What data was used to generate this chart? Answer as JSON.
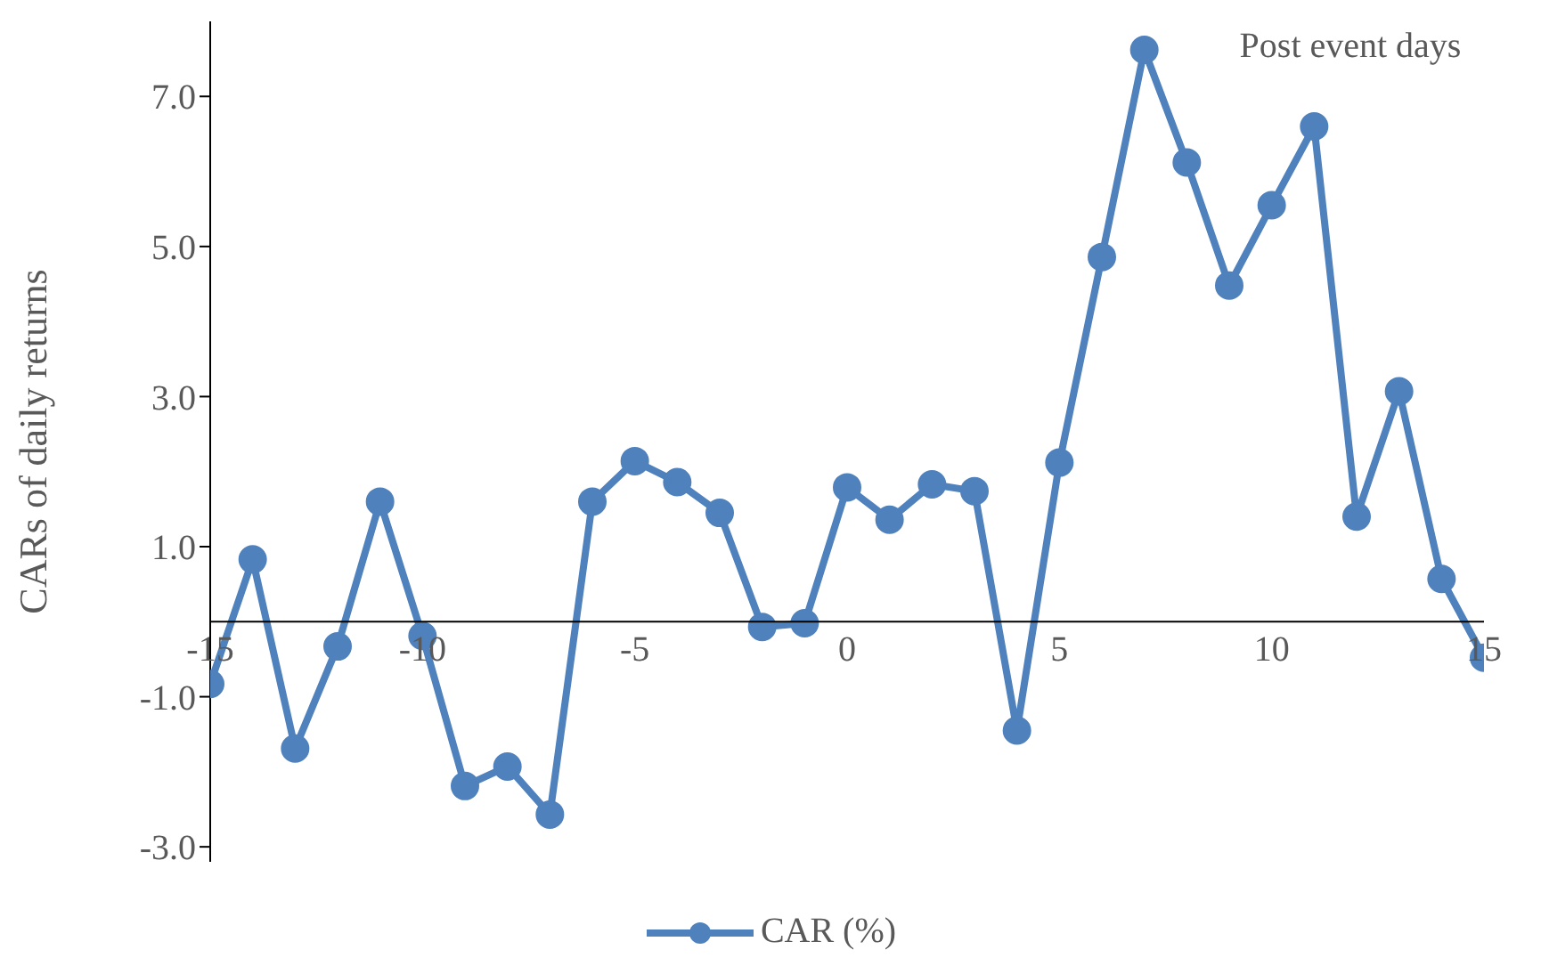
{
  "chart_data": {
    "type": "line",
    "xlabel": "Post event days",
    "ylabel": "CARs of daily returns",
    "x": [
      -15,
      -14,
      -13,
      -12,
      -11,
      -10,
      -9,
      -8,
      -7,
      -6,
      -5,
      -4,
      -3,
      -2,
      -1,
      0,
      1,
      2,
      3,
      4,
      5,
      6,
      7,
      8,
      9,
      10,
      11,
      12,
      13,
      14,
      15
    ],
    "series": [
      {
        "name": "CAR (%)",
        "color": "#4f81bd",
        "values": [
          -0.83,
          0.83,
          -1.69,
          -0.33,
          1.6,
          -0.19,
          -2.19,
          -1.93,
          -2.57,
          1.6,
          2.14,
          1.86,
          1.45,
          -0.07,
          -0.02,
          1.79,
          1.36,
          1.83,
          1.74,
          -1.45,
          2.12,
          4.86,
          7.62,
          6.12,
          4.48,
          5.55,
          6.6,
          1.4,
          3.07,
          0.57,
          -0.48
        ]
      }
    ],
    "xlim": [
      -15,
      15
    ],
    "xticks": [
      -15,
      -10,
      -5,
      0,
      5,
      10,
      15
    ],
    "ylim": [
      -3.2,
      8
    ],
    "yticks": [
      {
        "value": -3,
        "label": "-3.0"
      },
      {
        "value": -1,
        "label": "-1.0"
      },
      {
        "value": 1,
        "label": "1.0"
      },
      {
        "value": 3,
        "label": "3.0"
      },
      {
        "value": 5,
        "label": "5.0"
      },
      {
        "value": 7,
        "label": "7.0"
      }
    ],
    "grid": false,
    "legend": "bottom",
    "marker": "circle",
    "line_style": "solid"
  }
}
